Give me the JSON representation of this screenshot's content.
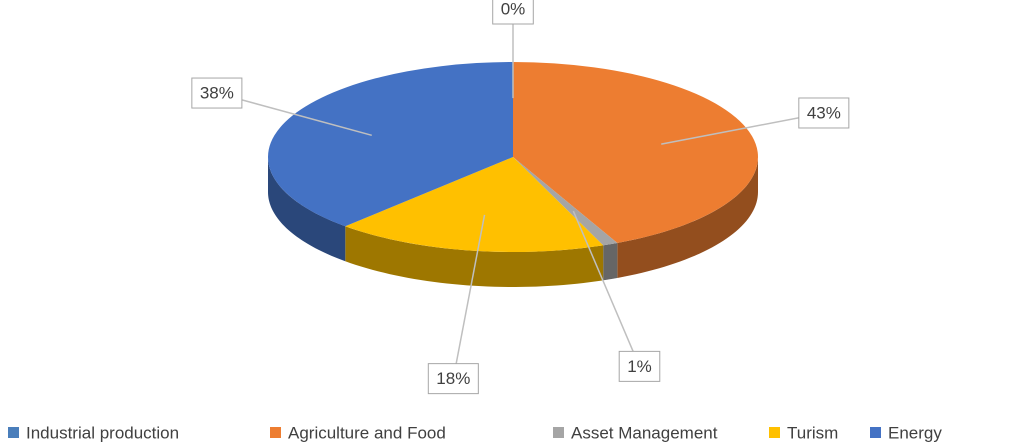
{
  "chart_data": {
    "type": "pie",
    "categories": [
      "Industrial production",
      "Agriculture and Food",
      "Asset Management",
      "Turism",
      "Energy"
    ],
    "values": [
      0,
      43,
      1,
      18,
      38
    ],
    "value_labels": [
      "0%",
      "43%",
      "1%",
      "18%",
      "38%"
    ],
    "colors": [
      "#4a7ebb",
      "#ed7d31",
      "#a5a5a5",
      "#ffc000",
      "#4472c4"
    ],
    "legend": "bottom"
  }
}
